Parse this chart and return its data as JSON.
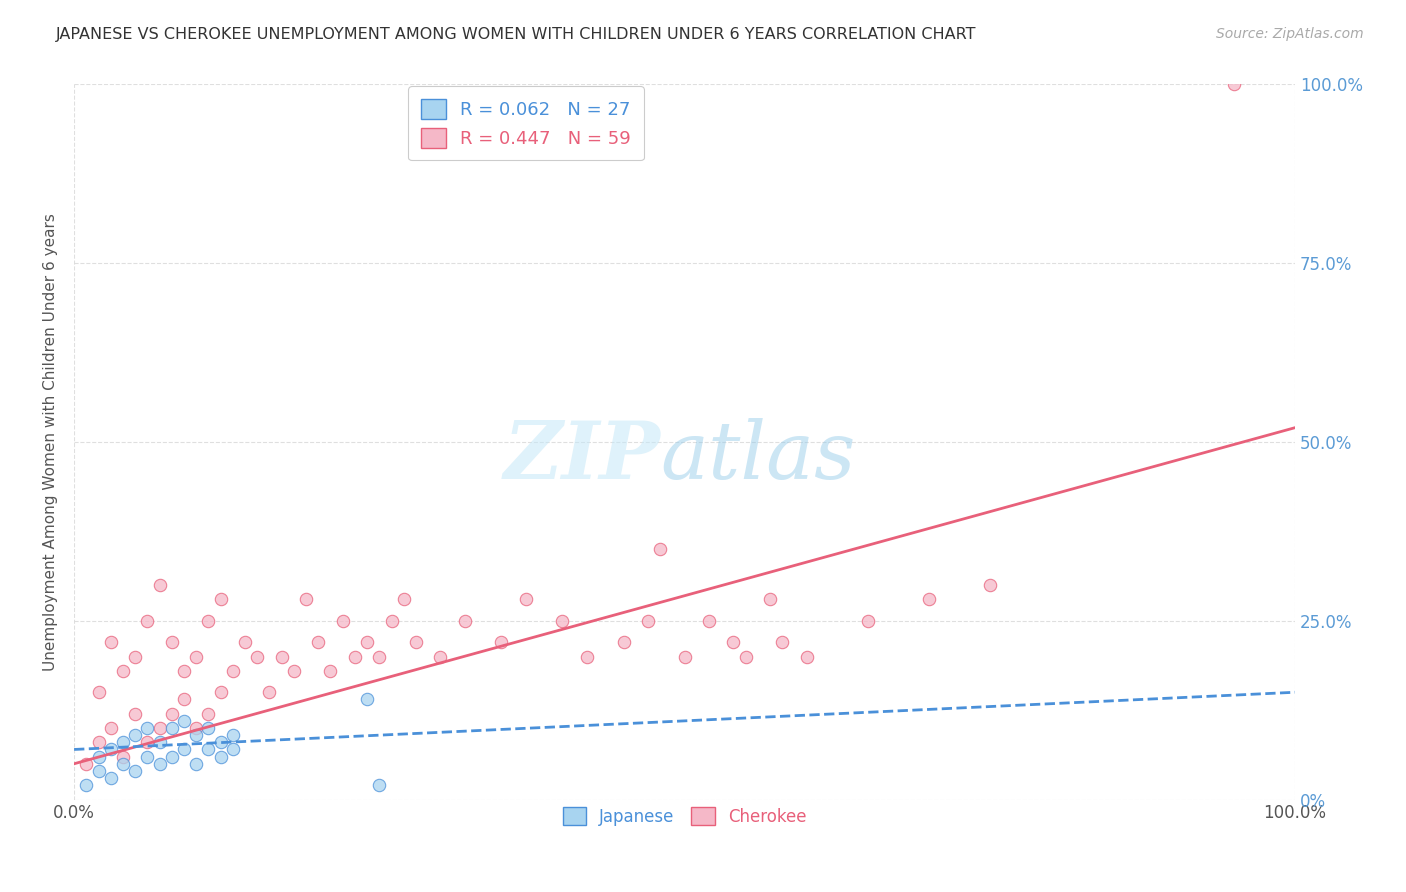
{
  "title": "JAPANESE VS CHEROKEE UNEMPLOYMENT AMONG WOMEN WITH CHILDREN UNDER 6 YEARS CORRELATION CHART",
  "source": "Source: ZipAtlas.com",
  "ylabel": "Unemployment Among Women with Children Under 6 years",
  "watermark_zip": "ZIP",
  "watermark_atlas": "atlas",
  "legend_japanese": "R = 0.062   N = 27",
  "legend_cherokee": "R = 0.447   N = 59",
  "japanese_color": "#a8d4f0",
  "cherokee_color": "#f5b8c8",
  "japanese_line_color": "#4a90d9",
  "cherokee_line_color": "#e8607a",
  "grid_color": "#d8d8d8",
  "ytick_color": "#5b9bd5",
  "japanese_scatter_x": [
    0.01,
    0.02,
    0.02,
    0.03,
    0.03,
    0.04,
    0.04,
    0.05,
    0.05,
    0.06,
    0.06,
    0.07,
    0.07,
    0.08,
    0.08,
    0.09,
    0.09,
    0.1,
    0.1,
    0.11,
    0.11,
    0.12,
    0.12,
    0.13,
    0.13,
    0.24,
    0.25
  ],
  "japanese_scatter_y": [
    0.02,
    0.04,
    0.06,
    0.03,
    0.07,
    0.05,
    0.08,
    0.04,
    0.09,
    0.06,
    0.1,
    0.05,
    0.08,
    0.06,
    0.1,
    0.07,
    0.11,
    0.05,
    0.09,
    0.07,
    0.1,
    0.06,
    0.08,
    0.07,
    0.09,
    0.14,
    0.02
  ],
  "cherokee_scatter_x": [
    0.01,
    0.02,
    0.02,
    0.03,
    0.03,
    0.04,
    0.04,
    0.05,
    0.05,
    0.06,
    0.06,
    0.07,
    0.07,
    0.08,
    0.08,
    0.09,
    0.09,
    0.1,
    0.1,
    0.11,
    0.11,
    0.12,
    0.12,
    0.13,
    0.14,
    0.15,
    0.16,
    0.17,
    0.18,
    0.19,
    0.2,
    0.21,
    0.22,
    0.23,
    0.24,
    0.25,
    0.26,
    0.27,
    0.28,
    0.3,
    0.32,
    0.35,
    0.37,
    0.4,
    0.42,
    0.45,
    0.47,
    0.48,
    0.5,
    0.52,
    0.54,
    0.55,
    0.57,
    0.58,
    0.6,
    0.65,
    0.7,
    0.75,
    0.95
  ],
  "cherokee_scatter_y": [
    0.05,
    0.08,
    0.15,
    0.1,
    0.22,
    0.06,
    0.18,
    0.12,
    0.2,
    0.08,
    0.25,
    0.1,
    0.3,
    0.12,
    0.22,
    0.14,
    0.18,
    0.1,
    0.2,
    0.12,
    0.25,
    0.15,
    0.28,
    0.18,
    0.22,
    0.2,
    0.15,
    0.2,
    0.18,
    0.28,
    0.22,
    0.18,
    0.25,
    0.2,
    0.22,
    0.2,
    0.25,
    0.28,
    0.22,
    0.2,
    0.25,
    0.22,
    0.28,
    0.25,
    0.2,
    0.22,
    0.25,
    0.35,
    0.2,
    0.25,
    0.22,
    0.2,
    0.28,
    0.22,
    0.2,
    0.25,
    0.28,
    0.3,
    1.0
  ],
  "xlim": [
    0.0,
    1.0
  ],
  "ylim": [
    0.0,
    1.0
  ],
  "yticks": [
    0.0,
    0.25,
    0.5,
    0.75,
    1.0
  ],
  "ytick_labels": [
    "0%",
    "25.0%",
    "50.0%",
    "75.0%",
    "100.0%"
  ],
  "xtick_left_label": "0.0%",
  "xtick_right_label": "100.0%",
  "japanese_trend_x0": 0.0,
  "japanese_trend_x1": 1.0,
  "japanese_trend_y0": 0.07,
  "japanese_trend_y1": 0.15,
  "cherokee_trend_x0": 0.0,
  "cherokee_trend_x1": 1.0,
  "cherokee_trend_y0": 0.05,
  "cherokee_trend_y1": 0.52
}
